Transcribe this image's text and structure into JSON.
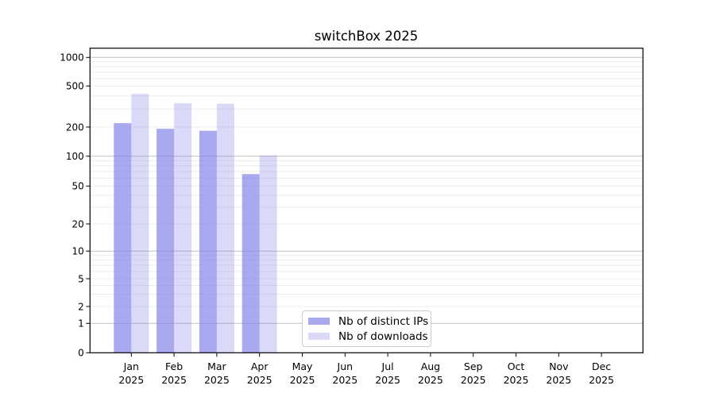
{
  "chart_data": {
    "type": "bar",
    "title": "switchBox 2025",
    "categories": [
      "Jan",
      "Feb",
      "Mar",
      "Apr",
      "May",
      "Jun",
      "Jul",
      "Aug",
      "Sep",
      "Oct",
      "Nov",
      "Dec"
    ],
    "category_year": "2025",
    "series": [
      {
        "name": "Nb of distinct IPs",
        "color": "rgba(132,132,233,0.7)",
        "values": [
          218,
          192,
          183,
          66,
          null,
          null,
          null,
          null,
          null,
          null,
          null,
          null
        ]
      },
      {
        "name": "Nb of downloads",
        "color": "rgba(132,132,233,0.3)",
        "values": [
          420,
          341,
          337,
          102,
          null,
          null,
          null,
          null,
          null,
          null,
          null,
          null
        ]
      }
    ],
    "y_ticks": [
      0,
      1,
      2,
      5,
      10,
      20,
      50,
      100,
      200,
      500,
      1000
    ],
    "y_scale": "log-like (compressed linear segment below 1, log above)",
    "ylim": [
      0,
      1250
    ],
    "grid": "on",
    "legend_position": "inside-bottom-center",
    "colors": {
      "background": "#ffffff",
      "axis": "#000000",
      "major_grid": "#c0c0c0",
      "minor_grid": "#ececec",
      "bar_base": "#8484e9",
      "legend_border": "#cccccc",
      "text": "#000000"
    }
  }
}
